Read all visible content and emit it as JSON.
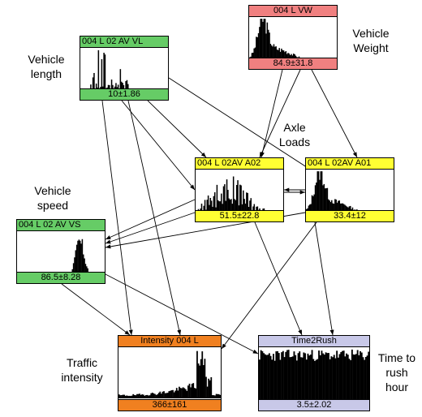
{
  "nodes": {
    "vw": {
      "header": "004 L VW",
      "footer": "84.9±31.8",
      "color": "#f08080",
      "shape": "spike-left"
    },
    "vl": {
      "header": "004 L 02 AV VL",
      "footer": "10±1.86",
      "color": "#66cc66",
      "shape": "multi-spike"
    },
    "a02": {
      "header": "004 L 02AV A02",
      "footer": "51.5±22.8",
      "color": "#ffff33",
      "shape": "comb"
    },
    "a01": {
      "header": "004 L 02AV A01",
      "footer": "33.4±12",
      "color": "#ffff33",
      "shape": "spike-left"
    },
    "vs": {
      "header": "004 L 02 AV VS",
      "footer": "86.5±8.28",
      "color": "#66cc66",
      "shape": "spike-right"
    },
    "int": {
      "header": "Intensity 004 L",
      "footer": "366±161",
      "color": "#f08020",
      "shape": "rising"
    },
    "t2r": {
      "header": "Time2Rush",
      "footer": "3.5±2.02",
      "color": "#c8c8e8",
      "shape": "uniform"
    }
  },
  "labels": {
    "vehicle_length": [
      "Vehicle",
      "length"
    ],
    "vehicle_weight": [
      "Vehicle",
      "Weight"
    ],
    "axle_loads": [
      "Axle",
      "Loads"
    ],
    "vehicle_speed": [
      "Vehicle",
      "speed"
    ],
    "traffic_intensity": [
      "Traffic",
      "intensity"
    ],
    "time_to_rush": [
      "Time to",
      "rush",
      "hour"
    ]
  },
  "edge_color": "#000000"
}
